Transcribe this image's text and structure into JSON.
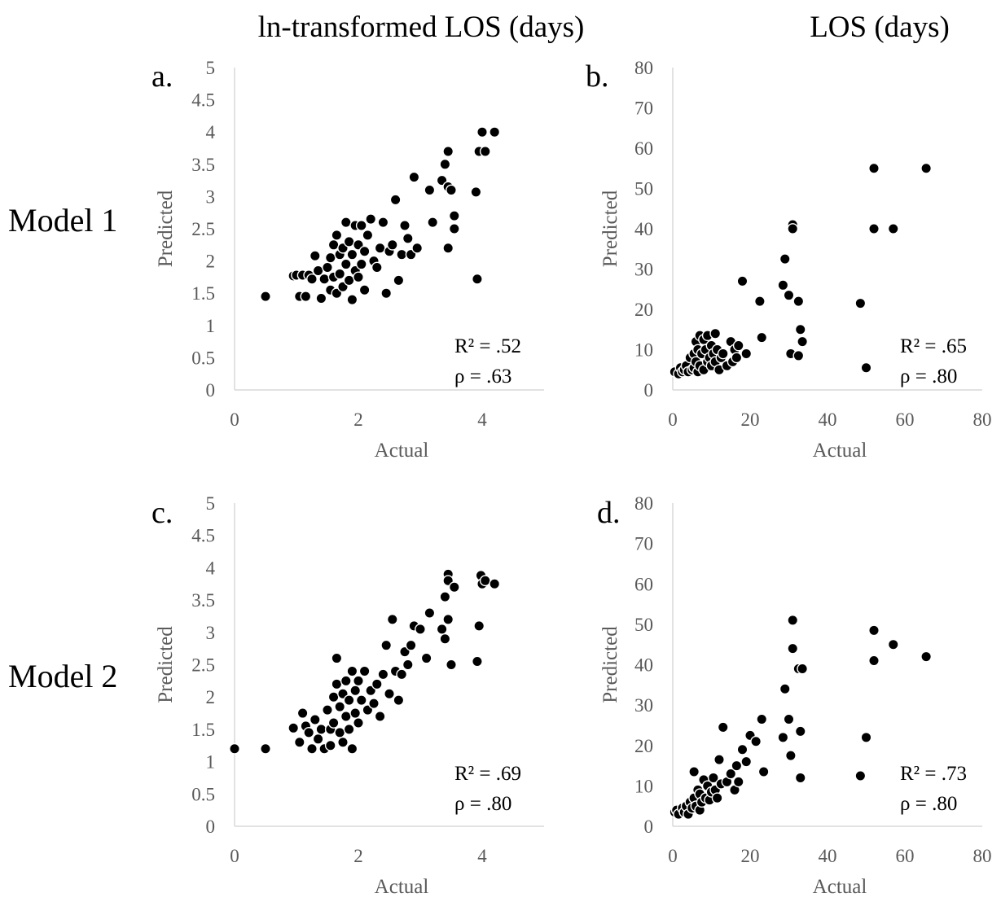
{
  "figure": {
    "column_titles": [
      "ln-transformed LOS (days)",
      "LOS (days)"
    ],
    "row_labels": [
      "Model 1",
      "Model 2"
    ]
  },
  "chart_data": [
    {
      "type": "scatter",
      "panel_label": "a.",
      "xlabel": "Actual",
      "ylabel": "Predicted",
      "xlim": [
        0,
        5
      ],
      "ylim": [
        0,
        5
      ],
      "xticks": [
        "0",
        "2",
        "4"
      ],
      "xtick_values": [
        0,
        2,
        4
      ],
      "yticks": [
        "0",
        "0.5",
        "1",
        "1.5",
        "2",
        "2.5",
        "3",
        "3.5",
        "4",
        "4.5",
        "5"
      ],
      "ytick_values": [
        0,
        0.5,
        1,
        1.5,
        2,
        2.5,
        3,
        3.5,
        4,
        4.5,
        5
      ],
      "annotations": [
        "R² = .52",
        "ρ = .63"
      ],
      "points": [
        [
          0.5,
          1.45
        ],
        [
          0.95,
          1.77
        ],
        [
          1.0,
          1.78
        ],
        [
          1.05,
          1.45
        ],
        [
          1.1,
          1.78
        ],
        [
          1.15,
          1.45
        ],
        [
          1.2,
          1.78
        ],
        [
          1.25,
          1.72
        ],
        [
          1.3,
          2.08
        ],
        [
          1.35,
          1.85
        ],
        [
          1.4,
          1.42
        ],
        [
          1.45,
          1.72
        ],
        [
          1.5,
          1.9
        ],
        [
          1.55,
          1.55
        ],
        [
          1.55,
          2.05
        ],
        [
          1.6,
          2.25
        ],
        [
          1.6,
          1.75
        ],
        [
          1.65,
          1.5
        ],
        [
          1.65,
          2.4
        ],
        [
          1.7,
          2.1
        ],
        [
          1.7,
          1.8
        ],
        [
          1.75,
          2.2
        ],
        [
          1.75,
          1.6
        ],
        [
          1.8,
          2.6
        ],
        [
          1.8,
          1.95
        ],
        [
          1.85,
          2.3
        ],
        [
          1.85,
          1.7
        ],
        [
          1.9,
          2.1
        ],
        [
          1.9,
          1.4
        ],
        [
          1.95,
          1.85
        ],
        [
          1.95,
          2.55
        ],
        [
          2.0,
          2.25
        ],
        [
          2.0,
          1.75
        ],
        [
          2.05,
          1.95
        ],
        [
          2.05,
          2.55
        ],
        [
          2.1,
          2.15
        ],
        [
          2.1,
          1.55
        ],
        [
          2.15,
          2.4
        ],
        [
          2.2,
          2.65
        ],
        [
          2.25,
          2.0
        ],
        [
          2.3,
          1.9
        ],
        [
          2.35,
          2.2
        ],
        [
          2.4,
          2.6
        ],
        [
          2.45,
          1.5
        ],
        [
          2.5,
          2.15
        ],
        [
          2.55,
          2.25
        ],
        [
          2.6,
          2.95
        ],
        [
          2.65,
          1.7
        ],
        [
          2.7,
          2.1
        ],
        [
          2.75,
          2.55
        ],
        [
          2.8,
          2.35
        ],
        [
          2.85,
          2.1
        ],
        [
          2.9,
          3.3
        ],
        [
          2.95,
          2.2
        ],
        [
          3.15,
          3.1
        ],
        [
          3.2,
          2.6
        ],
        [
          3.35,
          3.25
        ],
        [
          3.4,
          3.5
        ],
        [
          3.45,
          3.7
        ],
        [
          3.45,
          3.15
        ],
        [
          3.45,
          2.2
        ],
        [
          3.5,
          3.1
        ],
        [
          3.55,
          2.5
        ],
        [
          3.55,
          2.7
        ],
        [
          3.9,
          3.07
        ],
        [
          3.92,
          1.72
        ],
        [
          3.95,
          3.7
        ],
        [
          4.0,
          4.0
        ],
        [
          4.05,
          3.7
        ],
        [
          4.2,
          4.0
        ]
      ]
    },
    {
      "type": "scatter",
      "panel_label": "b.",
      "xlabel": "Actual",
      "ylabel": "Predicted",
      "xlim": [
        0,
        80
      ],
      "ylim": [
        0,
        80
      ],
      "xticks": [
        "0",
        "20",
        "40",
        "60",
        "80"
      ],
      "xtick_values": [
        0,
        20,
        40,
        60,
        80
      ],
      "yticks": [
        "0",
        "10",
        "20",
        "30",
        "40",
        "50",
        "60",
        "70",
        "80"
      ],
      "ytick_values": [
        0,
        10,
        20,
        30,
        40,
        50,
        60,
        70,
        80
      ],
      "annotations": [
        "R² = .65",
        "ρ = .80"
      ],
      "points": [
        [
          0.5,
          4.5
        ],
        [
          1.5,
          4
        ],
        [
          2,
          5.5
        ],
        [
          2.5,
          4.5
        ],
        [
          3,
          5
        ],
        [
          3.5,
          6
        ],
        [
          4,
          4.5
        ],
        [
          4.5,
          8
        ],
        [
          5,
          5
        ],
        [
          5.5,
          9
        ],
        [
          5.5,
          5.5
        ],
        [
          6,
          12
        ],
        [
          6,
          7
        ],
        [
          6.5,
          10
        ],
        [
          6.5,
          4.5
        ],
        [
          7,
          13.5
        ],
        [
          7,
          6
        ],
        [
          7.5,
          9
        ],
        [
          8,
          12.5
        ],
        [
          8,
          5
        ],
        [
          8.5,
          10
        ],
        [
          9,
          7
        ],
        [
          9,
          13.5
        ],
        [
          9.5,
          8
        ],
        [
          10,
          6
        ],
        [
          10,
          11
        ],
        [
          10.5,
          9
        ],
        [
          11,
          14
        ],
        [
          11,
          7
        ],
        [
          11.5,
          10
        ],
        [
          12,
          5
        ],
        [
          12.5,
          8
        ],
        [
          13,
          9
        ],
        [
          14,
          6
        ],
        [
          15,
          12
        ],
        [
          15.5,
          7
        ],
        [
          16,
          10
        ],
        [
          16.5,
          8
        ],
        [
          17,
          11
        ],
        [
          18,
          27
        ],
        [
          19,
          9
        ],
        [
          22.5,
          22
        ],
        [
          23,
          13
        ],
        [
          28.5,
          26
        ],
        [
          29,
          32.5
        ],
        [
          30,
          23.5
        ],
        [
          30.5,
          9
        ],
        [
          31,
          41
        ],
        [
          31,
          40
        ],
        [
          32.5,
          22
        ],
        [
          32.5,
          8.5
        ],
        [
          33,
          15
        ],
        [
          33.5,
          12
        ],
        [
          48.5,
          21.5
        ],
        [
          50,
          5.5
        ],
        [
          52,
          55
        ],
        [
          52,
          40
        ],
        [
          57,
          40
        ],
        [
          65.5,
          55
        ]
      ]
    },
    {
      "type": "scatter",
      "panel_label": "c.",
      "xlabel": "Actual",
      "ylabel": "Predicted",
      "xlim": [
        0,
        5
      ],
      "ylim": [
        0,
        5
      ],
      "xticks": [
        "0",
        "2",
        "4"
      ],
      "xtick_values": [
        0,
        2,
        4
      ],
      "yticks": [
        "0",
        "0.5",
        "1",
        "1.5",
        "2",
        "2.5",
        "3",
        "3.5",
        "4",
        "4.5",
        "5"
      ],
      "ytick_values": [
        0,
        0.5,
        1,
        1.5,
        2,
        2.5,
        3,
        3.5,
        4,
        4.5,
        5
      ],
      "annotations": [
        "R² = .69",
        "ρ = .80"
      ],
      "points": [
        [
          0,
          1.2
        ],
        [
          0.5,
          1.2
        ],
        [
          0.95,
          1.52
        ],
        [
          1.05,
          1.3
        ],
        [
          1.1,
          1.75
        ],
        [
          1.15,
          1.55
        ],
        [
          1.2,
          1.45
        ],
        [
          1.25,
          1.2
        ],
        [
          1.3,
          1.65
        ],
        [
          1.35,
          1.35
        ],
        [
          1.4,
          1.5
        ],
        [
          1.45,
          1.2
        ],
        [
          1.5,
          1.8
        ],
        [
          1.55,
          1.5
        ],
        [
          1.55,
          1.25
        ],
        [
          1.6,
          2.0
        ],
        [
          1.6,
          1.6
        ],
        [
          1.65,
          2.2
        ],
        [
          1.65,
          2.6
        ],
        [
          1.7,
          1.85
        ],
        [
          1.7,
          1.45
        ],
        [
          1.75,
          2.05
        ],
        [
          1.75,
          1.3
        ],
        [
          1.8,
          2.25
        ],
        [
          1.8,
          1.7
        ],
        [
          1.85,
          1.95
        ],
        [
          1.85,
          1.5
        ],
        [
          1.9,
          2.4
        ],
        [
          1.9,
          1.2
        ],
        [
          1.95,
          2.1
        ],
        [
          1.95,
          1.75
        ],
        [
          2.0,
          2.25
        ],
        [
          2.0,
          1.6
        ],
        [
          2.05,
          1.95
        ],
        [
          2.1,
          2.4
        ],
        [
          2.15,
          1.8
        ],
        [
          2.2,
          2.1
        ],
        [
          2.25,
          1.9
        ],
        [
          2.3,
          2.2
        ],
        [
          2.35,
          1.7
        ],
        [
          2.4,
          2.35
        ],
        [
          2.45,
          2.8
        ],
        [
          2.5,
          2.05
        ],
        [
          2.55,
          3.2
        ],
        [
          2.6,
          2.4
        ],
        [
          2.65,
          1.95
        ],
        [
          2.7,
          2.35
        ],
        [
          2.75,
          2.7
        ],
        [
          2.8,
          2.5
        ],
        [
          2.85,
          2.8
        ],
        [
          2.9,
          3.1
        ],
        [
          3.0,
          3.05
        ],
        [
          3.1,
          2.6
        ],
        [
          3.15,
          3.3
        ],
        [
          3.35,
          3.05
        ],
        [
          3.4,
          3.55
        ],
        [
          3.4,
          2.9
        ],
        [
          3.45,
          3.9
        ],
        [
          3.45,
          3.8
        ],
        [
          3.45,
          3.2
        ],
        [
          3.5,
          2.5
        ],
        [
          3.55,
          3.7
        ],
        [
          3.92,
          2.55
        ],
        [
          3.95,
          3.1
        ],
        [
          3.98,
          3.88
        ],
        [
          4.0,
          3.75
        ],
        [
          4.05,
          3.8
        ],
        [
          4.2,
          3.75
        ]
      ]
    },
    {
      "type": "scatter",
      "panel_label": "d.",
      "xlabel": "Actual",
      "ylabel": "Predicted",
      "xlim": [
        0,
        80
      ],
      "ylim": [
        0,
        80
      ],
      "xticks": [
        "0",
        "20",
        "40",
        "60",
        "80"
      ],
      "xtick_values": [
        0,
        20,
        40,
        60,
        80
      ],
      "yticks": [
        "0",
        "10",
        "20",
        "30",
        "40",
        "50",
        "60",
        "70",
        "80"
      ],
      "ytick_values": [
        0,
        10,
        20,
        30,
        40,
        50,
        60,
        70,
        80
      ],
      "annotations": [
        "R² = .73",
        "ρ = .80"
      ],
      "points": [
        [
          0.5,
          3.5
        ],
        [
          1,
          4
        ],
        [
          1.5,
          3
        ],
        [
          2.5,
          4.5
        ],
        [
          3,
          3.5
        ],
        [
          3.5,
          5
        ],
        [
          4,
          3
        ],
        [
          4.5,
          6
        ],
        [
          5,
          4.5
        ],
        [
          5.5,
          7
        ],
        [
          5.5,
          13.5
        ],
        [
          6,
          5
        ],
        [
          6.5,
          9
        ],
        [
          7,
          4
        ],
        [
          7,
          8
        ],
        [
          7.5,
          6
        ],
        [
          8,
          11.5
        ],
        [
          8.5,
          7
        ],
        [
          9,
          10
        ],
        [
          9.5,
          6.5
        ],
        [
          10,
          8.5
        ],
        [
          10.5,
          12
        ],
        [
          11,
          9
        ],
        [
          11.5,
          7
        ],
        [
          12,
          16.5
        ],
        [
          12.5,
          10.5
        ],
        [
          13,
          24.5
        ],
        [
          14,
          11
        ],
        [
          15,
          13
        ],
        [
          16,
          9
        ],
        [
          16.5,
          15
        ],
        [
          17,
          11
        ],
        [
          18,
          19
        ],
        [
          19,
          16
        ],
        [
          20,
          22.5
        ],
        [
          21.5,
          21
        ],
        [
          23,
          26.5
        ],
        [
          23.5,
          13.5
        ],
        [
          28.5,
          22
        ],
        [
          29,
          34
        ],
        [
          30,
          26.5
        ],
        [
          30.5,
          17.5
        ],
        [
          31,
          44
        ],
        [
          31,
          51
        ],
        [
          32.5,
          39
        ],
        [
          33,
          23.5
        ],
        [
          33,
          12
        ],
        [
          33.5,
          39
        ],
        [
          48.5,
          12.5
        ],
        [
          50,
          22
        ],
        [
          52,
          48.5
        ],
        [
          52,
          41
        ],
        [
          57,
          45
        ],
        [
          65.5,
          42
        ]
      ]
    }
  ]
}
